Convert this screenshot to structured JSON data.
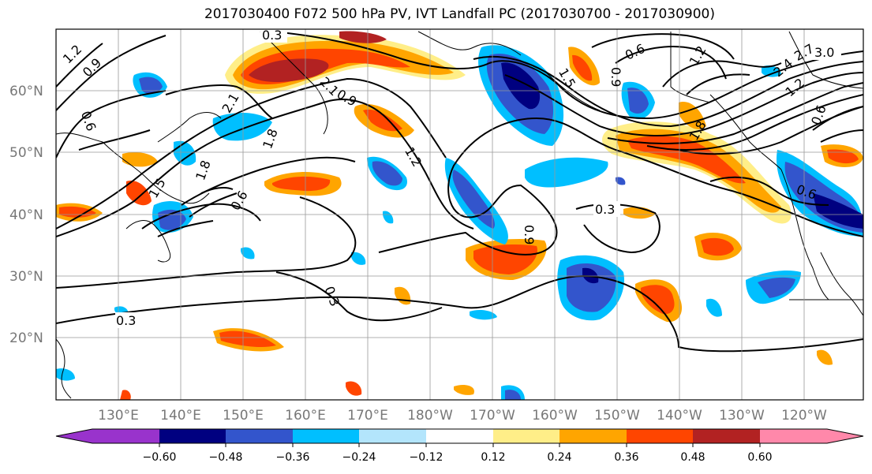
{
  "title": "2017030400 F072 500 hPa PV, IVT Landfall PC (2017030700 - 2017030900)",
  "lat_labels": [
    "60°N",
    "50°N",
    "40°N",
    "30°N",
    "20°N"
  ],
  "lon_labels": [
    "130°E",
    "140°E",
    "150°E",
    "160°E",
    "170°E",
    "180°W",
    "170°W",
    "160°W",
    "150°W",
    "140°W",
    "130°W",
    "120°W"
  ],
  "contour_labels": [
    "0.3",
    "0.6",
    "0.9",
    "1.2",
    "1.5",
    "1.8",
    "2.1",
    "2.4",
    "2.7",
    "3.0"
  ],
  "colorbar": {
    "ticks": [
      "−0.60",
      "−0.48",
      "−0.36",
      "−0.24",
      "−0.12",
      "0.12",
      "0.24",
      "0.36",
      "0.48",
      "0.60"
    ],
    "colors": [
      "#9933cc",
      "#000080",
      "#3355cc",
      "#00bfff",
      "#b3e5fc",
      "#ffffff",
      "#ffee88",
      "#ffa500",
      "#ff4500",
      "#b22222",
      "#ff88aa"
    ]
  },
  "colors": {
    "neg_strong": "#3355cc",
    "neg_medium": "#00bfff",
    "neg_weak": "#b3e5fc",
    "pos_weak": "#ffee88",
    "pos_medium": "#ffa500",
    "pos_strong": "#ff4500",
    "pos_max": "#b22222",
    "neg_max": "#000080",
    "grid": "#999999"
  }
}
